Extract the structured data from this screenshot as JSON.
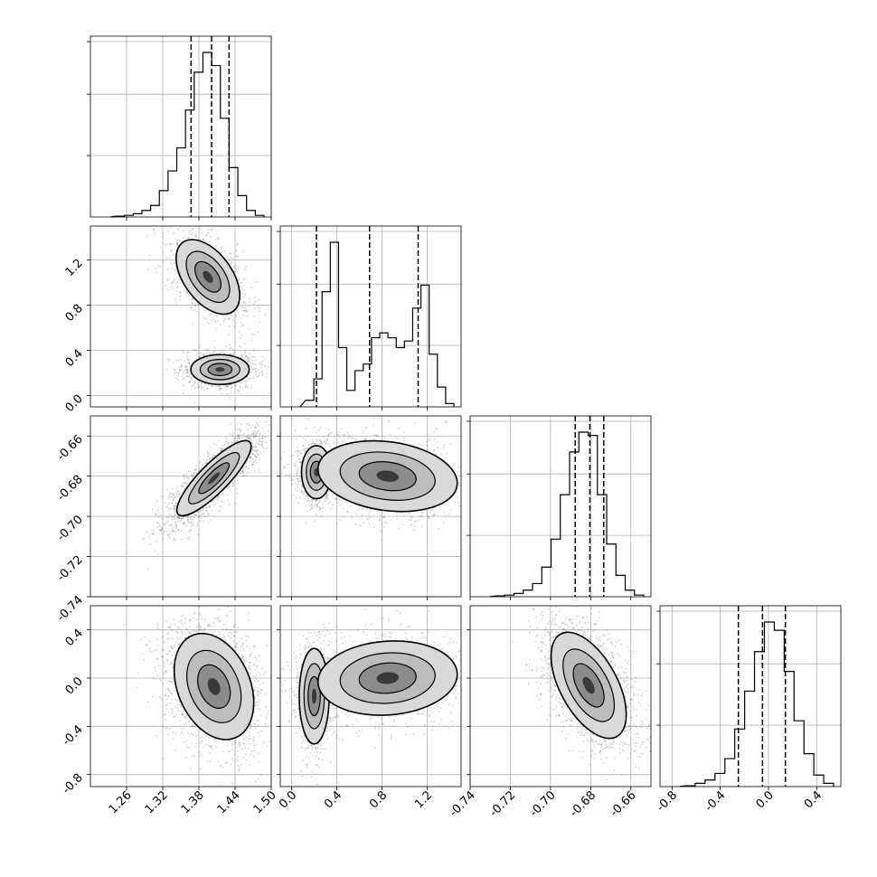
{
  "chart_data": {
    "type": "corner",
    "parameters": 4,
    "grid": true,
    "colors": {
      "ink": "#000000",
      "grid": "#b0b0b0",
      "background": "#ffffff"
    },
    "quantile_lines": "dashed",
    "axes": [
      {
        "range": [
          1.2,
          1.5
        ],
        "ticks": [
          "1.26",
          "1.32",
          "1.38",
          "1.44",
          "1.50"
        ],
        "tick_values": [
          1.26,
          1.32,
          1.38,
          1.44,
          1.5
        ]
      },
      {
        "range": [
          -0.1,
          1.5
        ],
        "ticks": [
          "0.0",
          "0.4",
          "0.8",
          "1.2"
        ],
        "tick_values": [
          0.0,
          0.4,
          0.8,
          1.2
        ]
      },
      {
        "range": [
          -0.74,
          -0.65
        ],
        "ticks": [
          "-0.74",
          "-0.72",
          "-0.70",
          "-0.68",
          "-0.66"
        ],
        "tick_values": [
          -0.74,
          -0.72,
          -0.7,
          -0.68,
          -0.66
        ]
      },
      {
        "range": [
          -0.9,
          0.6
        ],
        "ticks": [
          "-0.8",
          "-0.4",
          "0.0",
          "0.4"
        ],
        "tick_values": [
          -0.8,
          -0.4,
          0.0,
          0.4
        ]
      }
    ],
    "marginals": [
      {
        "quantiles": [
          1.367,
          1.401,
          1.43
        ],
        "counts": [
          0.005,
          0.01,
          0.02,
          0.04,
          0.07,
          0.16,
          0.28,
          0.42,
          0.65,
          0.88,
          1.0,
          0.92,
          0.6,
          0.3,
          0.13,
          0.04,
          0.01
        ]
      },
      {
        "quantiles": [
          0.22,
          0.69,
          1.12
        ],
        "counts": [
          0.04,
          0.17,
          0.7,
          1.0,
          0.36,
          0.1,
          0.22,
          0.26,
          0.42,
          0.45,
          0.42,
          0.36,
          0.4,
          0.6,
          0.74,
          0.32,
          0.12,
          0.02
        ]
      },
      {
        "quantiles": [
          -0.6877,
          -0.6804,
          -0.6735
        ],
        "counts": [
          0.005,
          0.01,
          0.02,
          0.04,
          0.08,
          0.18,
          0.35,
          0.62,
          0.88,
          1.0,
          0.98,
          0.62,
          0.32,
          0.13,
          0.04,
          0.01
        ]
      },
      {
        "quantiles": [
          -0.25,
          -0.05,
          0.14
        ],
        "counts": [
          0.005,
          0.02,
          0.04,
          0.08,
          0.17,
          0.35,
          0.58,
          0.82,
          1.0,
          0.95,
          0.7,
          0.4,
          0.2,
          0.07,
          0.02
        ]
      }
    ],
    "pairs": [
      {
        "row": 1,
        "col": 0,
        "comps": [
          {
            "mx": 1.395,
            "my": 1.05,
            "sx": 0.024,
            "sy": 0.15,
            "rho": -0.5,
            "w": 0.5
          },
          {
            "mx": 1.415,
            "my": 0.23,
            "sx": 0.022,
            "sy": 0.06,
            "rho": 0.0,
            "w": 0.5
          }
        ]
      },
      {
        "row": 2,
        "col": 0,
        "comps": [
          {
            "mx": 1.405,
            "my": -0.681,
            "sx": 0.028,
            "sy": 0.0085,
            "rho": 0.85,
            "w": 1.0
          }
        ]
      },
      {
        "row": 2,
        "col": 1,
        "comps": [
          {
            "mx": 0.22,
            "my": -0.678,
            "sx": 0.06,
            "sy": 0.006,
            "rho": 0.0,
            "w": 0.4
          },
          {
            "mx": 0.85,
            "my": -0.68,
            "sx": 0.28,
            "sy": 0.008,
            "rho": -0.2,
            "w": 0.6
          }
        ]
      },
      {
        "row": 3,
        "col": 0,
        "comps": [
          {
            "mx": 1.405,
            "my": -0.07,
            "sx": 0.03,
            "sy": 0.2,
            "rho": -0.3,
            "w": 1.0
          }
        ]
      },
      {
        "row": 3,
        "col": 1,
        "comps": [
          {
            "mx": 0.2,
            "my": -0.15,
            "sx": 0.06,
            "sy": 0.18,
            "rho": 0.0,
            "w": 0.4
          },
          {
            "mx": 0.85,
            "my": 0.0,
            "sx": 0.28,
            "sy": 0.14,
            "rho": 0.1,
            "w": 0.6
          }
        ]
      },
      {
        "row": 3,
        "col": 2,
        "comps": [
          {
            "mx": -0.681,
            "my": -0.06,
            "sx": 0.0085,
            "sy": 0.2,
            "rho": -0.55,
            "w": 1.0
          }
        ]
      }
    ]
  }
}
